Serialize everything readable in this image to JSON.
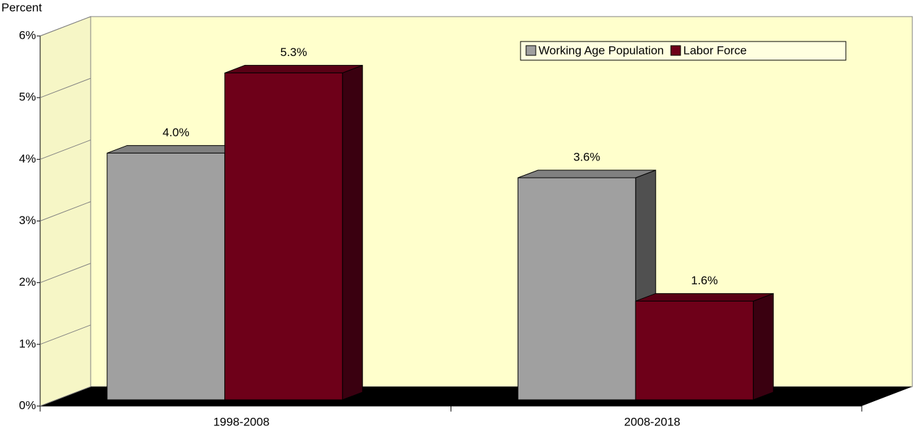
{
  "chart_data": {
    "type": "bar3d",
    "y_label": "Percent",
    "categories": [
      "1998-2008",
      "2008-2018"
    ],
    "series": [
      {
        "name": "Working Age Population",
        "color": "#a0a0a0",
        "side_color": "#505050",
        "top_color": "#808080",
        "values": [
          4.0,
          3.6
        ],
        "value_labels": [
          "4.0%",
          "3.6%"
        ]
      },
      {
        "name": "Labor Force",
        "color": "#6e0019",
        "side_color": "#3a0010",
        "top_color": "#5a0015",
        "values": [
          5.3,
          1.6
        ],
        "value_labels": [
          "5.3%",
          "1.6%"
        ]
      }
    ],
    "ylim": [
      0,
      6
    ],
    "yticks": [
      {
        "value": 0,
        "label": "0%"
      },
      {
        "value": 1,
        "label": "1%"
      },
      {
        "value": 2,
        "label": "2%"
      },
      {
        "value": 3,
        "label": "3%"
      },
      {
        "value": 4,
        "label": "4%"
      },
      {
        "value": 5,
        "label": "5%"
      },
      {
        "value": 6,
        "label": "6%"
      }
    ],
    "legend": "top-right"
  }
}
